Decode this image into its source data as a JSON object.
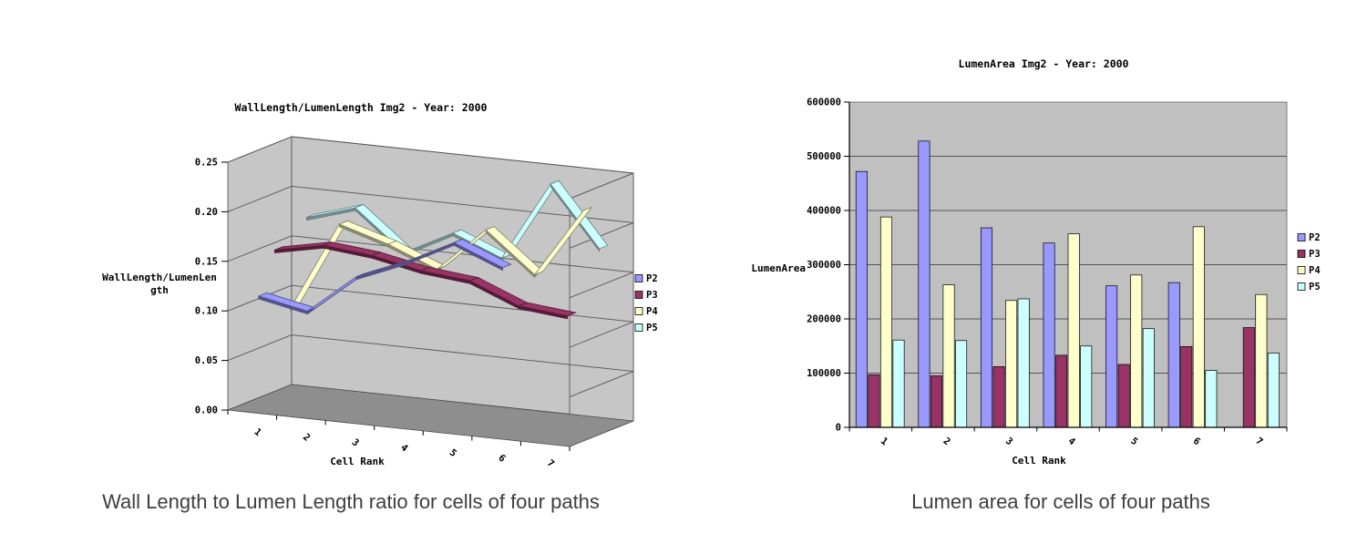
{
  "page": {
    "background": "#ffffff"
  },
  "left_chart": {
    "caption": "Wall Length to Lumen Length ratio for cells of four paths"
  },
  "right_chart": {
    "caption": "Lumen area for cells of four paths"
  },
  "colors": {
    "series": {
      "P2": "#9999FF",
      "P3": "#993366",
      "P4": "#FFFFCC",
      "P5": "#CCFFFF"
    },
    "plot_background": "#C6C6C6",
    "bar_plot_background": "#C0C0C0",
    "floor": "#8E8E8E",
    "gridline": "#555555",
    "axis": "#000000",
    "caption_text": "#3E3E3E"
  },
  "chart_data": [
    {
      "type": "line",
      "projection": "3d-ribbon",
      "title": "WallLength/LumenLength Img2 - Year: 2000",
      "xlabel": "Cell Rank",
      "ylabel": "WallLength/LumenLength",
      "ylabel_display": {
        "line1": "WallLength/LumenLen",
        "line2": "gth"
      },
      "ylim": [
        0,
        0.25
      ],
      "ytick_labels": [
        "0.00",
        "0.05",
        "0.10",
        "0.15",
        "0.20",
        "0.25"
      ],
      "categories": [
        "1",
        "2",
        "3",
        "4",
        "5",
        "6",
        "7"
      ],
      "series": [
        {
          "name": "P2",
          "values": [
            0.115,
            0.105,
            0.145,
            0.165,
            0.19,
            0.17,
            null
          ]
        },
        {
          "name": "P3",
          "values": [
            0.155,
            0.165,
            0.16,
            0.15,
            0.145,
            0.125,
            0.12
          ]
        },
        {
          "name": "P4",
          "values": [
            0.09,
            0.18,
            0.165,
            0.145,
            0.19,
            0.15,
            0.22
          ]
        },
        {
          "name": "P5",
          "values": [
            0.175,
            0.19,
            0.15,
            0.175,
            0.155,
            0.235,
            0.175
          ]
        }
      ],
      "legend": [
        "P2",
        "P3",
        "P4",
        "P5"
      ],
      "legend_position": "right",
      "grid": true
    },
    {
      "type": "bar",
      "title": "LumenArea Img2 - Year: 2000",
      "xlabel": "Cell Rank",
      "ylabel": "LumenArea",
      "ylim": [
        0,
        600000
      ],
      "ytick_labels": [
        "0",
        "100000",
        "200000",
        "300000",
        "400000",
        "500000",
        "600000"
      ],
      "categories": [
        "1",
        "2",
        "3",
        "4",
        "5",
        "6",
        "7"
      ],
      "series": [
        {
          "name": "P2",
          "values": [
            472000,
            528000,
            368000,
            340000,
            261000,
            267000,
            null
          ]
        },
        {
          "name": "P3",
          "values": [
            97000,
            95000,
            112000,
            133000,
            116000,
            149000,
            184000
          ]
        },
        {
          "name": "P4",
          "values": [
            388000,
            263000,
            234000,
            357000,
            281000,
            370000,
            245000
          ]
        },
        {
          "name": "P5",
          "values": [
            161000,
            160000,
            237000,
            150000,
            182000,
            105000,
            137000
          ]
        }
      ],
      "legend": [
        "P2",
        "P3",
        "P4",
        "P5"
      ],
      "legend_position": "right",
      "grid": true
    }
  ]
}
